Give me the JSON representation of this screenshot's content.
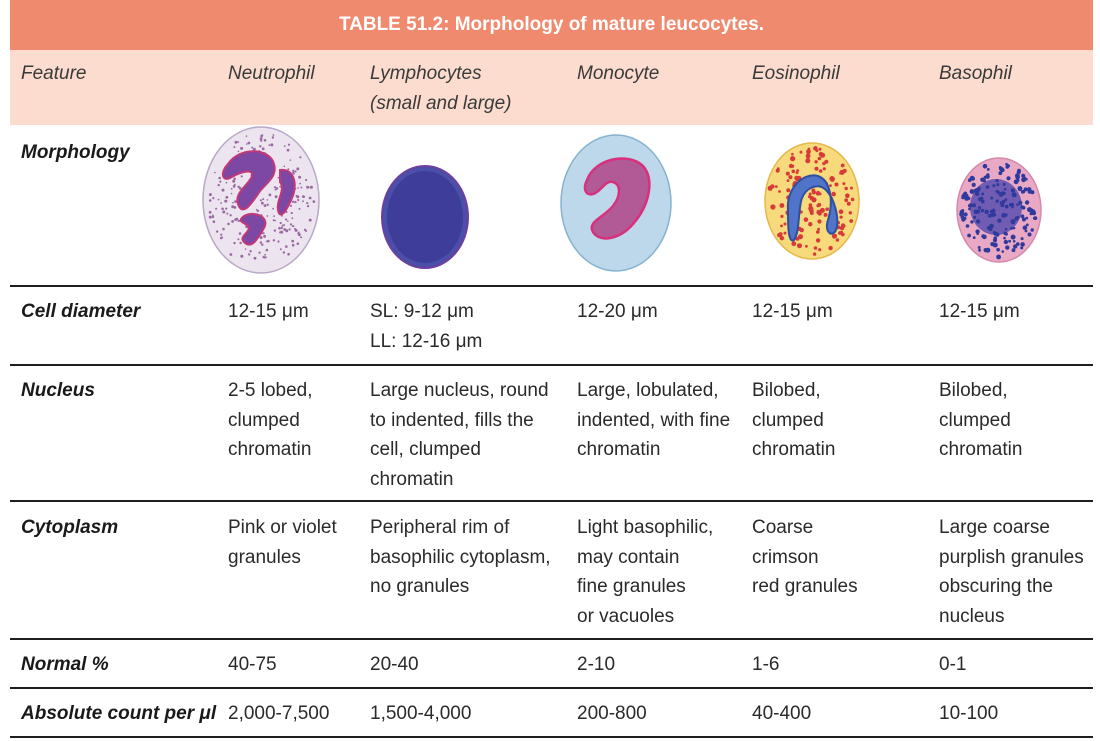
{
  "table": {
    "title": "TABLE 51.2: Morphology of mature leucocytes.",
    "header": {
      "feature": "Feature",
      "columns": [
        {
          "lines": [
            "Neutrophil"
          ]
        },
        {
          "lines": [
            "Lymphocytes",
            "(small and large)"
          ]
        },
        {
          "lines": [
            "Monocyte"
          ]
        },
        {
          "lines": [
            "Eosinophil"
          ]
        },
        {
          "lines": [
            "Basophil"
          ]
        }
      ]
    },
    "morphology": {
      "label": "Morphology",
      "images": [
        "neutrophil-cell-image",
        "lymphocyte-cell-image",
        "monocyte-cell-image",
        "eosinophil-cell-image",
        "basophil-cell-image"
      ]
    },
    "rows": [
      {
        "label": "Cell diameter",
        "cells": [
          [
            "12-15 μm"
          ],
          [
            "SL: 9-12 μm",
            "LL: 12-16 μm"
          ],
          [
            "12-20 μm"
          ],
          [
            "12-15 μm"
          ],
          [
            "12-15 μm"
          ]
        ]
      },
      {
        "label": "Nucleus",
        "cells": [
          [
            "2-5 lobed,",
            "clumped",
            "chromatin"
          ],
          [
            "Large nucleus, round",
            "to indented, fills the",
            "cell, clumped",
            "chromatin"
          ],
          [
            "Large, lobulated,",
            "indented, with fine",
            "chromatin"
          ],
          [
            "Bilobed,",
            "clumped",
            "chromatin"
          ],
          [
            "Bilobed,",
            "clumped",
            "chromatin"
          ]
        ]
      },
      {
        "label": "Cytoplasm",
        "cells": [
          [
            "Pink or violet",
            "granules"
          ],
          [
            "Peripheral rim of",
            "basophilic cytoplasm,",
            "no granules"
          ],
          [
            "Light basophilic,",
            "may contain",
            "fine granules",
            "or vacuoles"
          ],
          [
            "Coarse",
            "crimson",
            "red granules"
          ],
          [
            "Large coarse",
            "purplish granules",
            "obscuring the",
            "nucleus"
          ]
        ]
      },
      {
        "label": "Normal %",
        "cells": [
          [
            "40-75"
          ],
          [
            "20-40"
          ],
          [
            "2-10"
          ],
          [
            "1-6"
          ],
          [
            "0-1"
          ]
        ]
      },
      {
        "label": "Absolute count per μl",
        "cells": [
          [
            "2,000-7,500"
          ],
          [
            "1,500-4,000"
          ],
          [
            "200-800"
          ],
          [
            "40-400"
          ],
          [
            "10-100"
          ]
        ]
      }
    ]
  },
  "colors": {
    "title_bg": "#ef8a6e",
    "header_bg": "#fbdccf",
    "rule": "#1e1e1e"
  }
}
